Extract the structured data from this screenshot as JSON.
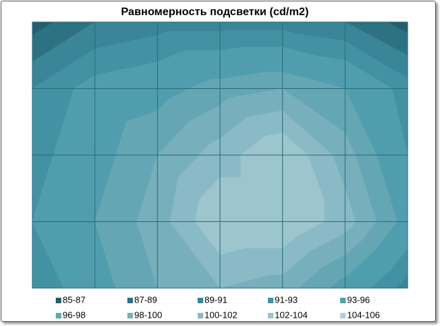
{
  "chart_data": {
    "type": "contour",
    "title": "Равномерность подсветки (cd/m2)",
    "z": [
      [
        86,
        89,
        90,
        90,
        90,
        89,
        86
      ],
      [
        91,
        94,
        95,
        97,
        98,
        96,
        92
      ],
      [
        92,
        95,
        98,
        101,
        104,
        99,
        93
      ],
      [
        93,
        96,
        99,
        104,
        104,
        101,
        95
      ],
      [
        91,
        95,
        98,
        100,
        99,
        95,
        90
      ]
    ],
    "bands": [
      {
        "label": "85-87",
        "min": 85,
        "max": 87,
        "color": "#245e6c"
      },
      {
        "label": "87-89",
        "min": 87,
        "max": 89,
        "color": "#2c7282"
      },
      {
        "label": "89-91",
        "min": 89,
        "max": 91,
        "color": "#3a8698"
      },
      {
        "label": "91-93",
        "min": 91,
        "max": 93,
        "color": "#4292a3"
      },
      {
        "label": "93-96",
        "min": 93,
        "max": 96,
        "color": "#509dad"
      },
      {
        "label": "96-98",
        "min": 96,
        "max": 98,
        "color": "#65a6b4"
      },
      {
        "label": "98-100",
        "min": 98,
        "max": 100,
        "color": "#77afbc"
      },
      {
        "label": "100-102",
        "min": 100,
        "max": 102,
        "color": "#89bac5"
      },
      {
        "label": "102-104",
        "min": 102,
        "max": 104,
        "color": "#9cc5ce"
      },
      {
        "label": "104-106",
        "min": 104,
        "max": 106,
        "color": "#afd0d8"
      }
    ]
  }
}
